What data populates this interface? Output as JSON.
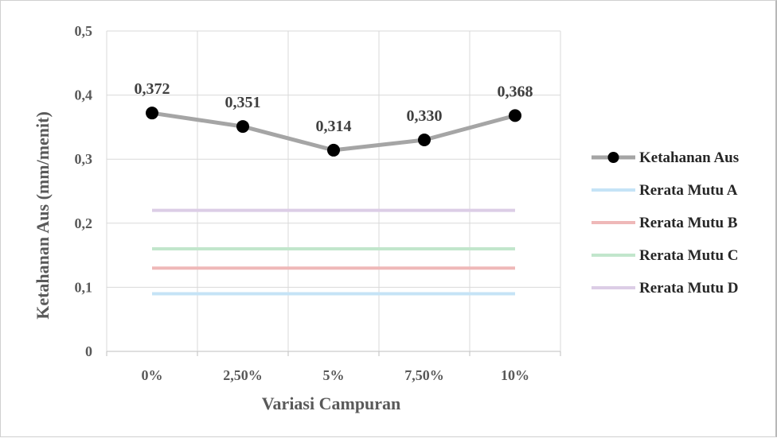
{
  "chart_data": {
    "type": "line",
    "title": "",
    "xlabel": "Variasi Campuran",
    "ylabel": "Ketahanan Aus (mm/menit)",
    "categories": [
      "0%",
      "2,50%",
      "5%",
      "7,50%",
      "10%"
    ],
    "ylim": [
      0,
      0.5
    ],
    "yticks": [
      0,
      0.1,
      0.2,
      0.3,
      0.4,
      0.5
    ],
    "ytick_labels": [
      "0",
      "0,1",
      "0,2",
      "0,3",
      "0,4",
      "0,5"
    ],
    "grid": true,
    "legend_position": "right",
    "series": [
      {
        "name": "Ketahanan Aus",
        "values": [
          0.372,
          0.351,
          0.314,
          0.33,
          0.368
        ],
        "data_labels": [
          "0,372",
          "0,351",
          "0,314",
          "0,330",
          "0,368"
        ],
        "color": "#a5a5a5",
        "marker_color": "#000000"
      },
      {
        "name": "Rerata Mutu A",
        "values": [
          0.09,
          0.09,
          0.09,
          0.09,
          0.09
        ],
        "color": "#c5e3f6"
      },
      {
        "name": "Rerata Mutu B",
        "values": [
          0.13,
          0.13,
          0.13,
          0.13,
          0.13
        ],
        "color": "#efb8b8"
      },
      {
        "name": "Rerata Mutu C",
        "values": [
          0.16,
          0.16,
          0.16,
          0.16,
          0.16
        ],
        "color": "#c2e6cc"
      },
      {
        "name": "Rerata Mutu D",
        "values": [
          0.22,
          0.22,
          0.22,
          0.22,
          0.22
        ],
        "color": "#dccde6"
      }
    ]
  }
}
